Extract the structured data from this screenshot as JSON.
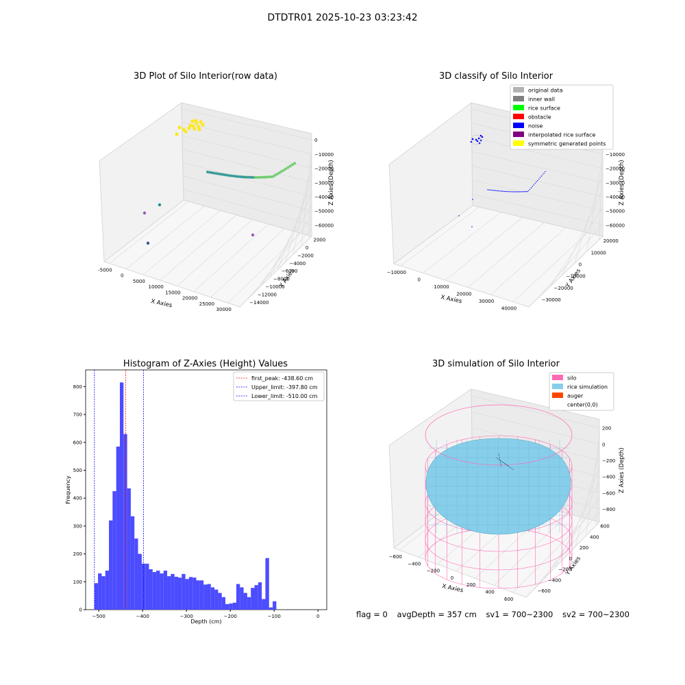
{
  "figure": {
    "suptitle": "DTDTR01 2025-10-23 03:23:42",
    "footer": {
      "flag": "flag = 0",
      "avg_depth": "avgDepth = 357 cm",
      "sv1": "sv1 = 700~2300",
      "sv2": "sv2 = 700~2300"
    }
  },
  "chart_data": [
    {
      "type": "scatter",
      "title": "3D Plot of Silo Interior(row data)",
      "xlabel": "X Axies",
      "ylabel": "Y Axies",
      "zlabel": "Z Axies (Depth)",
      "x_ticks": [
        "-5000",
        "0",
        "5000",
        "10000",
        "15000",
        "20000",
        "25000",
        "30000"
      ],
      "y_ticks": [
        "2000",
        "0",
        "−2000",
        "−4000",
        "−6000",
        "−8000",
        "−10000",
        "−12000",
        "−14000"
      ],
      "z_ticks": [
        "0",
        "−10000",
        "−20000",
        "−30000",
        "−40000",
        "−50000",
        "−60000"
      ],
      "colors": {
        "cluster": "#fde725",
        "arc_start": "#21918c",
        "arc_end": "#5ec962",
        "outlier_a": "#3b528b",
        "outlier_b": "#9b59b6"
      }
    },
    {
      "type": "scatter",
      "title": "3D classify of Silo Interior",
      "xlabel": "X Axies",
      "ylabel": "Y Axies",
      "zlabel": "Z Axies (Depth)",
      "x_ticks": [
        "−10000",
        "0",
        "10000",
        "20000",
        "30000",
        "40000"
      ],
      "y_ticks": [
        "20000",
        "10000",
        "0",
        "−10000",
        "−20000",
        "−30000"
      ],
      "z_ticks": [
        "0",
        "−10000",
        "−20000",
        "−30000",
        "−40000",
        "−50000",
        "−60000"
      ],
      "legend_position": "upper-right",
      "legend": [
        {
          "label": "original data",
          "color": "#b3b3b3"
        },
        {
          "label": "inner wall",
          "color": "#808080"
        },
        {
          "label": "rice surface",
          "color": "#00ff00"
        },
        {
          "label": "obstacle",
          "color": "#ff0000"
        },
        {
          "label": "noise",
          "color": "#0000ff"
        },
        {
          "label": "interpolated rice surface",
          "color": "#800080"
        },
        {
          "label": "symmetric generated points",
          "color": "#ffff00"
        }
      ]
    },
    {
      "type": "bar",
      "title": "Histogram of Z-Axies (Height) Values",
      "xlabel": "Depth (cm)",
      "ylabel": "Frequency",
      "xlim": [
        -530,
        20
      ],
      "ylim": [
        0,
        860
      ],
      "x_ticks": [
        -500,
        -400,
        -300,
        -200,
        -100,
        0
      ],
      "y_ticks": [
        0,
        100,
        200,
        300,
        400,
        500,
        600,
        700,
        800
      ],
      "bar_color": "#4c4cff",
      "bin_start": -510,
      "bin_width": 8.3,
      "values": [
        95,
        130,
        120,
        140,
        320,
        425,
        585,
        815,
        630,
        435,
        335,
        255,
        200,
        165,
        165,
        145,
        135,
        140,
        130,
        140,
        120,
        128,
        118,
        115,
        128,
        110,
        117,
        115,
        105,
        105,
        90,
        92,
        80,
        72,
        60,
        45,
        20,
        22,
        25,
        92,
        80,
        60,
        45,
        78,
        88,
        98,
        38,
        185,
        8,
        30
      ],
      "lines": [
        {
          "label": "first_peak: -438.60 cm",
          "value": -438.6,
          "color": "#ff0000"
        },
        {
          "label": "Upper_limit: -397.80 cm",
          "value": -397.8,
          "color": "#0000ff"
        },
        {
          "label": "Lower_limit: -510.00 cm",
          "value": -510.0,
          "color": "#0000ff"
        }
      ],
      "legend_position": "upper-right"
    },
    {
      "type": "surface",
      "title": "3D simulation of Silo Interior",
      "xlabel": "X Axies",
      "ylabel": "Y Axies",
      "zlabel": "Z Axies (Depth)",
      "x_ticks": [
        "−600",
        "−400",
        "−200",
        "0",
        "200",
        "400",
        "600"
      ],
      "y_ticks": [
        "600",
        "400",
        "200",
        "0",
        "−200",
        "−400",
        "−600"
      ],
      "z_ticks": [
        "200",
        "0",
        "−200",
        "−400",
        "−600",
        "−800"
      ],
      "legend_position": "upper-right",
      "legend": [
        {
          "label": "silo",
          "color": "#ff69b4"
        },
        {
          "label": "rice simulation",
          "color": "#87ceeb"
        },
        {
          "label": "auger",
          "color": "#ff4500"
        },
        {
          "label": "center(0,0)",
          "color": ""
        }
      ]
    }
  ]
}
